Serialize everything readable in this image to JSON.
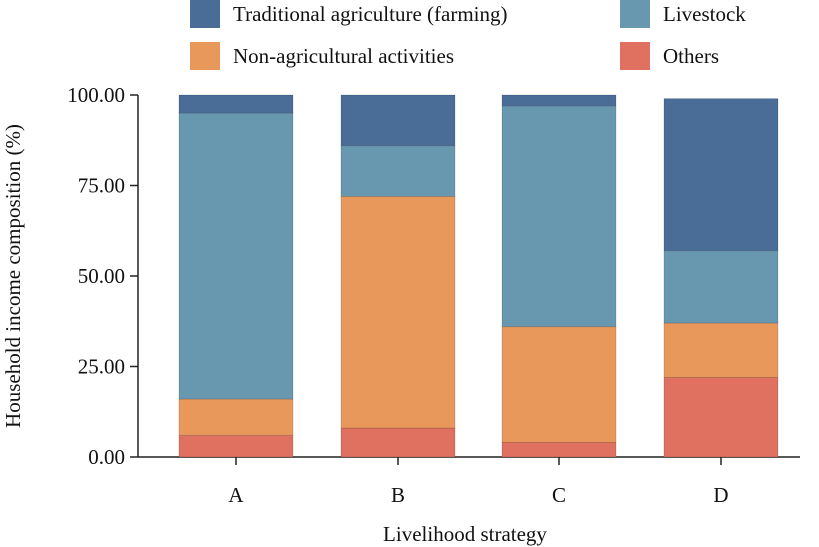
{
  "chart_data": {
    "type": "bar",
    "stacked": true,
    "categories": [
      "A",
      "B",
      "C",
      "D"
    ],
    "series": [
      {
        "name": "Others",
        "color": "#e07060",
        "values": [
          6,
          8,
          4,
          22
        ]
      },
      {
        "name": "Non-agricultural activities",
        "color": "#e8985a",
        "values": [
          10,
          64,
          32,
          15
        ]
      },
      {
        "name": "Livestock",
        "color": "#6897b0",
        "values": [
          79,
          14,
          61,
          20
        ]
      },
      {
        "name": "Traditional agriculture (farming)",
        "color": "#4a6d98",
        "values": [
          5,
          14,
          3,
          42
        ]
      }
    ],
    "legend_order": [
      "Traditional agriculture (farming)",
      "Livestock",
      "Non-agricultural activities",
      "Others"
    ],
    "legend_placement": "top",
    "title": "",
    "xlabel": "Livelihood strategy",
    "ylabel": "Household income composition (%)",
    "ylim": [
      0,
      100
    ],
    "yticks": [
      0,
      25,
      50,
      75,
      100
    ],
    "ytick_labels": [
      "0.00",
      "25.00",
      "50.00",
      "75.00",
      "100.00"
    ],
    "grid": false
  }
}
